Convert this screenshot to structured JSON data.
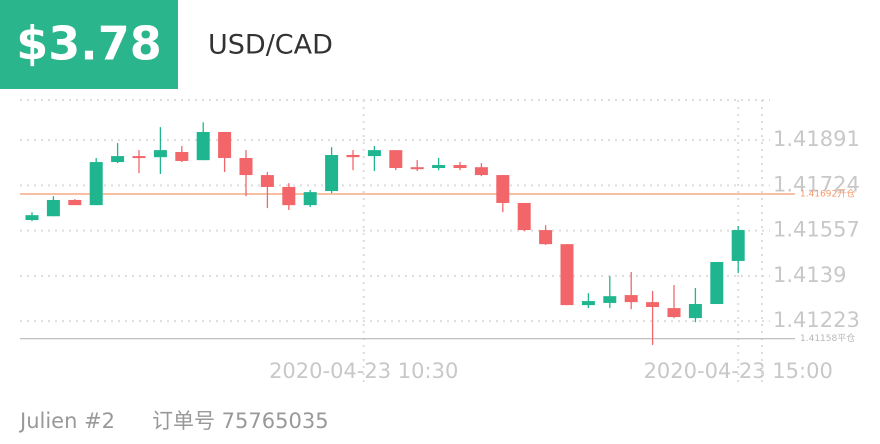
{
  "header": {
    "profit": "$3.78",
    "symbol": "USD/CAD"
  },
  "chart_data": {
    "type": "candlestick",
    "categories": [
      null,
      null,
      null,
      null,
      null,
      null,
      null,
      null,
      null,
      null,
      null,
      null,
      null,
      null,
      null,
      null,
      null,
      null,
      null,
      null,
      null,
      null,
      null,
      null,
      null,
      null,
      null,
      null,
      null,
      null,
      null,
      null,
      null,
      null
    ],
    "open": [
      1.41596,
      1.4161,
      1.4167,
      1.41651,
      1.4181,
      1.41832,
      1.41828,
      1.41847,
      1.41817,
      1.41921,
      1.41825,
      1.41762,
      1.41718,
      1.41651,
      1.41703,
      1.41836,
      1.41832,
      1.41854,
      1.41791,
      1.41788,
      1.41799,
      1.41791,
      1.41762,
      1.41659,
      1.41559,
      1.41507,
      1.41282,
      1.4129,
      1.41319,
      1.41293,
      1.41271,
      1.41234,
      1.41286,
      1.41445
    ],
    "high": [
      1.41625,
      1.41684,
      1.41673,
      1.41825,
      1.4188,
      1.41854,
      1.41939,
      1.41869,
      1.41957,
      1.41921,
      1.41854,
      1.41773,
      1.41732,
      1.41707,
      1.41865,
      1.41854,
      1.41869,
      1.41854,
      1.41817,
      1.41825,
      1.4181,
      1.41806,
      1.41762,
      1.41659,
      1.41577,
      1.41507,
      1.41326,
      1.41389,
      1.41404,
      1.41334,
      1.41356,
      1.41345,
      1.41441,
      1.41574
    ],
    "low": [
      1.41592,
      1.4161,
      1.41651,
      1.41651,
      1.41806,
      1.41769,
      1.41766,
      1.4181,
      1.41817,
      1.41773,
      1.41684,
      1.4164,
      1.41633,
      1.41644,
      1.41695,
      1.4178,
      1.41777,
      1.4178,
      1.41777,
      1.4178,
      1.4178,
      1.41758,
      1.41625,
      1.41555,
      1.41504,
      1.41282,
      1.41271,
      1.41271,
      1.41267,
      1.41135,
      1.41234,
      1.41219,
      1.41286,
      1.414
    ],
    "close": [
      1.41614,
      1.4167,
      1.41651,
      1.4181,
      1.41832,
      1.41825,
      1.41854,
      1.41814,
      1.41921,
      1.41825,
      1.41762,
      1.41718,
      1.41651,
      1.41699,
      1.41836,
      1.41828,
      1.41854,
      1.41788,
      1.41784,
      1.41799,
      1.41788,
      1.41762,
      1.41659,
      1.41559,
      1.41507,
      1.41282,
      1.41297,
      1.41315,
      1.41293,
      1.41275,
      1.41238,
      1.41286,
      1.41441,
      1.41559
    ],
    "up_color": "#1fb68f",
    "down_color": "#f2666a",
    "ylim": [
      1.4112,
      1.42039
    ],
    "yticks": [
      1.41891,
      1.41724,
      1.41557,
      1.4139,
      1.41223
    ],
    "xticks": [
      {
        "value": 15.5,
        "label": "2020-04-23 10:30"
      },
      {
        "value": 33,
        "label": "2020-04-23 15:00"
      }
    ],
    "grid": true,
    "reference_lines": [
      {
        "value": 1.41692,
        "label": "1.41692开仓",
        "color": "#f29a6c"
      },
      {
        "value": 1.41158,
        "label": "1.41158平仓",
        "color": "#b8b8b8"
      }
    ]
  },
  "footer": {
    "account": "Julien #2",
    "order": "订单号 75765035"
  }
}
